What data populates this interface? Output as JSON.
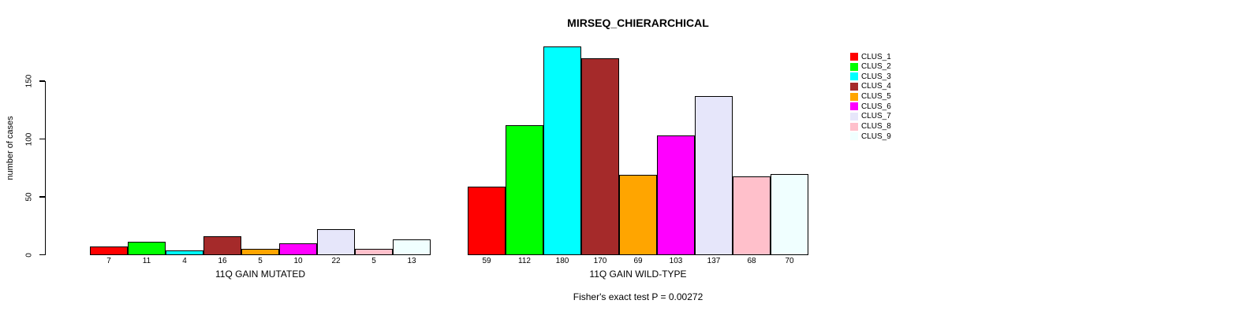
{
  "chart_data": {
    "type": "bar",
    "title": "MIRSEQ_CHIERARCHICAL",
    "ylabel": "number of cases",
    "y_ticks": [
      0,
      50,
      100,
      150
    ],
    "ylim": [
      0,
      185
    ],
    "grid": false,
    "legend_position": "right",
    "bar_value_labels": true,
    "categories": [
      "11Q GAIN MUTATED",
      "11Q GAIN WILD-TYPE"
    ],
    "series": [
      {
        "name": "CLUS_1",
        "color": "#FF0000",
        "values": [
          7,
          59
        ]
      },
      {
        "name": "CLUS_2",
        "color": "#00FF00",
        "values": [
          11,
          112
        ]
      },
      {
        "name": "CLUS_3",
        "color": "#00FFFF",
        "values": [
          4,
          180
        ]
      },
      {
        "name": "CLUS_4",
        "color": "#A52A2A",
        "values": [
          16,
          170
        ]
      },
      {
        "name": "CLUS_5",
        "color": "#FFA500",
        "values": [
          5,
          69
        ]
      },
      {
        "name": "CLUS_6",
        "color": "#FF00FF",
        "values": [
          10,
          103
        ]
      },
      {
        "name": "CLUS_7",
        "color": "#E6E6FA",
        "values": [
          22,
          137
        ]
      },
      {
        "name": "CLUS_8",
        "color": "#FFC0CB",
        "values": [
          5,
          68
        ]
      },
      {
        "name": "CLUS_9",
        "color": "#F0FFFF",
        "values": [
          13,
          70
        ]
      }
    ],
    "annotation": "Fisher's exact test P = 0.00272"
  }
}
